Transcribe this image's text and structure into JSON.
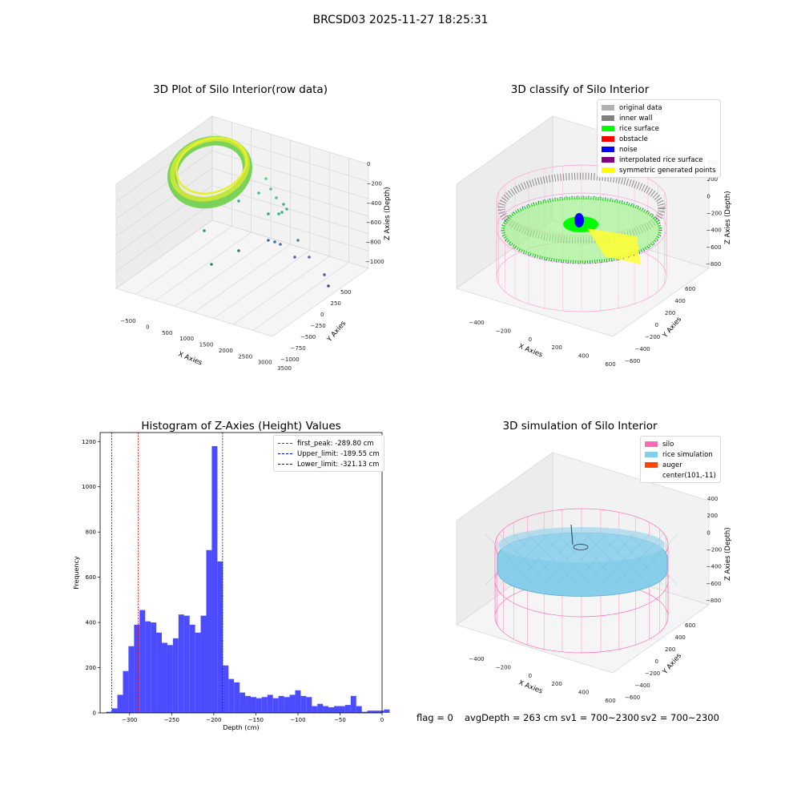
{
  "suptitle": "BRCSD03 2025-11-27 18:25:31",
  "panels": {
    "raw": {
      "title": "3D Plot of Silo Interior(row data)",
      "xlabel": "X Axies",
      "ylabel": "Y Axies",
      "zlabel": "Z Axies (Depth)",
      "xticks": [
        "−500",
        "0",
        "500",
        "1000",
        "1500",
        "2000",
        "2500",
        "3000",
        "3500"
      ],
      "yticks": [
        "500",
        "250",
        "0",
        "−250",
        "−500",
        "−750",
        "−1000"
      ],
      "zticks": [
        "0",
        "−200",
        "−400",
        "−600",
        "−800",
        "−1000"
      ]
    },
    "classify": {
      "title": "3D classify of Silo Interior",
      "xlabel": "X Axies",
      "ylabel": "Y Axies",
      "zlabel": "Z Axies (Depth)",
      "xticks": [
        "−400",
        "−200",
        "0",
        "200",
        "400",
        "600"
      ],
      "yticks": [
        "600",
        "400",
        "200",
        "0",
        "−200",
        "−400",
        "−600"
      ],
      "zticks": [
        "400",
        "200",
        "0",
        "−200",
        "−400",
        "−600",
        "−800"
      ],
      "legend": [
        {
          "label": "original data",
          "color": "#b0b0b0"
        },
        {
          "label": "inner wall",
          "color": "#808080"
        },
        {
          "label": "rice surface",
          "color": "#00ff00"
        },
        {
          "label": "obstacle",
          "color": "#ff0000"
        },
        {
          "label": "noise",
          "color": "#0000ff"
        },
        {
          "label": "interpolated rice surface",
          "color": "#800080"
        },
        {
          "label": "symmetric generated points",
          "color": "#ffff00"
        }
      ]
    },
    "simulation": {
      "title": "3D simulation of Silo Interior",
      "xlabel": "X Axies",
      "ylabel": "Y Axies",
      "zlabel": "Z Axies (Depth)",
      "xticks": [
        "−400",
        "−200",
        "0",
        "200",
        "400",
        "600"
      ],
      "yticks": [
        "600",
        "400",
        "200",
        "0",
        "−200",
        "−400",
        "−600"
      ],
      "zticks": [
        "400",
        "200",
        "0",
        "−200",
        "−400",
        "−600",
        "−800"
      ],
      "legend": [
        {
          "label": "silo",
          "color": "#ff69b4"
        },
        {
          "label": "rice simulation",
          "color": "#87ceeb"
        },
        {
          "label": "auger",
          "color": "#ff4500"
        },
        {
          "label": "center(101,-11)",
          "color": ""
        }
      ]
    }
  },
  "chart_data": {
    "type": "bar",
    "title": "Histogram of Z-Axies (Height) Values",
    "xlabel": "Depth (cm)",
    "ylabel": "Frequency",
    "xlim": [
      -335,
      0
    ],
    "ylim": [
      0,
      1240
    ],
    "xticks": [
      -300,
      -250,
      -200,
      -150,
      -100,
      -50,
      0
    ],
    "yticks": [
      0,
      200,
      400,
      600,
      800,
      1000,
      1200
    ],
    "bar_color": "#4b4bff",
    "bin_width": 6.6,
    "bin_start": -327.7,
    "values": [
      5,
      20,
      80,
      185,
      295,
      390,
      455,
      405,
      400,
      355,
      310,
      300,
      330,
      435,
      430,
      390,
      355,
      430,
      720,
      1180,
      670,
      210,
      150,
      135,
      90,
      75,
      70,
      65,
      70,
      80,
      65,
      75,
      70,
      80,
      100,
      75,
      70,
      30,
      40,
      30,
      25,
      30,
      30,
      35,
      75,
      30,
      5,
      10,
      10,
      10,
      15
    ],
    "vlines": [
      {
        "label": "first_peak: -289.80 cm",
        "x": -289.8,
        "color": "#ff0000"
      },
      {
        "label": "Upper_limit: -189.55 cm",
        "x": -189.55,
        "color": "#0000ff"
      },
      {
        "label": "Lower_limit: -321.13 cm",
        "x": -321.13,
        "color": "#0000ff"
      }
    ]
  },
  "footer": {
    "flag": "flag = 0",
    "avg_depth": "avgDepth = 263 cm",
    "sv1": "sv1 = 700~2300",
    "sv2": "sv2 = 700~2300"
  }
}
